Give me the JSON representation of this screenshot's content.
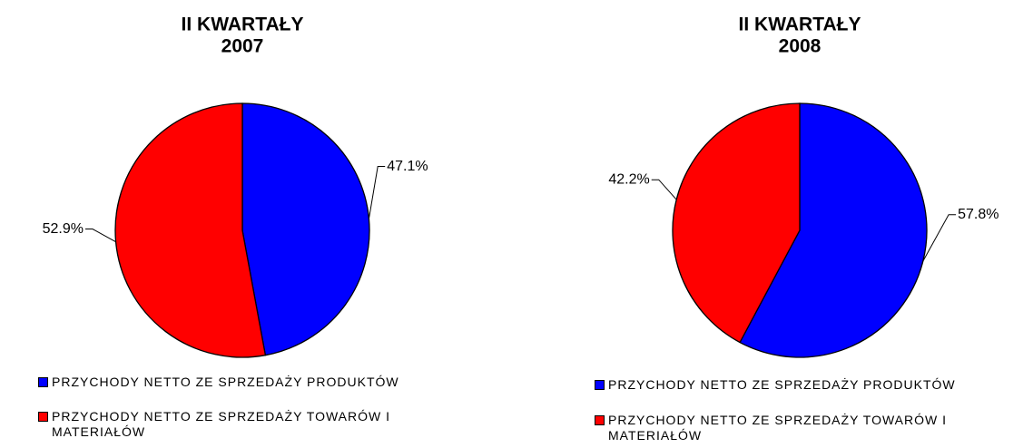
{
  "chart_data": [
    {
      "type": "pie",
      "title": [
        "II KWARTAŁY",
        "2007"
      ],
      "categories": [
        "PRZYCHODY NETTO ZE SPRZEDAŻY PRODUKTÓW",
        "PRZYCHODY NETTO ZE SPRZEDAŻY TOWARÓW I MATERIAŁÓW"
      ],
      "values": [
        47.1,
        52.9
      ],
      "value_labels": [
        "47.1%",
        "52.9%"
      ],
      "colors": [
        "#0000ff",
        "#ff0000"
      ]
    },
    {
      "type": "pie",
      "title": [
        "II KWARTAŁY",
        "2008"
      ],
      "categories": [
        "PRZYCHODY NETTO ZE SPRZEDAŻY PRODUKTÓW",
        "PRZYCHODY NETTO ZE SPRZEDAŻY TOWARÓW I MATERIAŁÓW"
      ],
      "values": [
        57.8,
        42.2
      ],
      "value_labels": [
        "57.8%",
        "42.2%"
      ],
      "colors": [
        "#0000ff",
        "#ff0000"
      ]
    }
  ]
}
